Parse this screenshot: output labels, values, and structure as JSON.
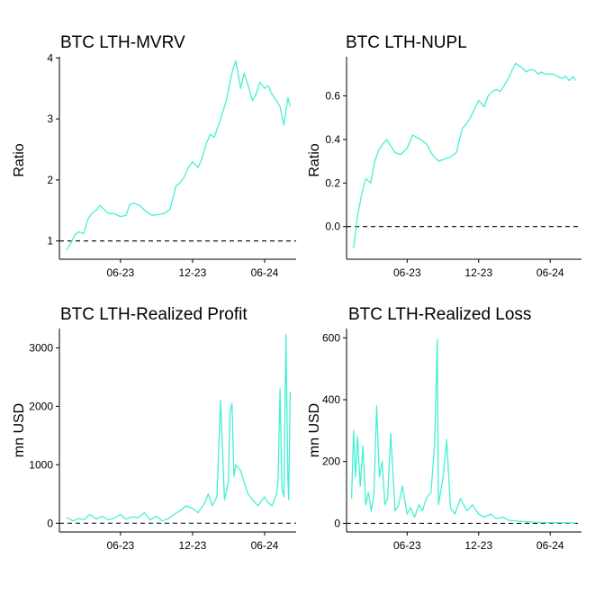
{
  "colors": {
    "series": "#45f0d4",
    "axis": "#000000"
  },
  "chart_data": [
    {
      "id": "mvrv",
      "type": "line",
      "title": "BTC LTH-MVRV",
      "xlabel": "",
      "ylabel": "Ratio",
      "xlim": [
        "2022-12-28",
        "2024-08-20"
      ],
      "ylim": [
        0.7,
        4.02
      ],
      "yticks": [
        1,
        2,
        3,
        4
      ],
      "yticklabels": [
        "1",
        "2",
        "3",
        "4"
      ],
      "xticks": [
        "2023-06-01",
        "2023-12-01",
        "2024-06-01"
      ],
      "xticklabels": [
        "06-23",
        "12-23",
        "06-24"
      ],
      "reference_line": 1,
      "grid": false,
      "series": [
        {
          "x": [
            "2023-01-15",
            "2023-01-25",
            "2023-02-05",
            "2023-02-15",
            "2023-02-28",
            "2023-03-10",
            "2023-03-20",
            "2023-03-31",
            "2023-04-10",
            "2023-04-20",
            "2023-05-01",
            "2023-05-15",
            "2023-06-01",
            "2023-06-15",
            "2023-06-25",
            "2023-07-05",
            "2023-07-20",
            "2023-08-05",
            "2023-08-20",
            "2023-09-05",
            "2023-09-20",
            "2023-10-05",
            "2023-10-20",
            "2023-10-30",
            "2023-11-10",
            "2023-11-20",
            "2023-12-01",
            "2023-12-15",
            "2023-12-25",
            "2024-01-05",
            "2024-01-15",
            "2024-01-25",
            "2024-02-05",
            "2024-02-15",
            "2024-02-25",
            "2024-03-05",
            "2024-03-12",
            "2024-03-20",
            "2024-04-01",
            "2024-04-10",
            "2024-04-20",
            "2024-05-01",
            "2024-05-10",
            "2024-05-20",
            "2024-06-01",
            "2024-06-10",
            "2024-06-20",
            "2024-07-01",
            "2024-07-10",
            "2024-07-20",
            "2024-07-30",
            "2024-08-05"
          ],
          "y": [
            0.85,
            0.95,
            1.1,
            1.15,
            1.12,
            1.35,
            1.45,
            1.5,
            1.58,
            1.52,
            1.45,
            1.45,
            1.4,
            1.42,
            1.6,
            1.62,
            1.58,
            1.48,
            1.42,
            1.43,
            1.45,
            1.52,
            1.9,
            1.95,
            2.05,
            2.2,
            2.3,
            2.2,
            2.35,
            2.6,
            2.75,
            2.7,
            2.9,
            3.1,
            3.3,
            3.6,
            3.8,
            3.95,
            3.5,
            3.75,
            3.55,
            3.3,
            3.4,
            3.6,
            3.5,
            3.55,
            3.4,
            3.3,
            3.2,
            2.9,
            3.35,
            3.2
          ]
        }
      ]
    },
    {
      "id": "nupl",
      "type": "line",
      "title": "BTC LTH-NUPL",
      "xlabel": "",
      "ylabel": "Ratio",
      "xlim": [
        "2022-12-28",
        "2024-08-20"
      ],
      "ylim": [
        -0.15,
        0.78
      ],
      "yticks": [
        0.0,
        0.2,
        0.4,
        0.6
      ],
      "yticklabels": [
        "0.0",
        "0.2",
        "0.4",
        "0.6"
      ],
      "xticks": [
        "2023-06-01",
        "2023-12-01",
        "2024-06-01"
      ],
      "xticklabels": [
        "06-23",
        "12-23",
        "06-24"
      ],
      "reference_line": 0,
      "grid": false,
      "series": [
        {
          "x": [
            "2023-01-15",
            "2023-01-25",
            "2023-02-05",
            "2023-02-15",
            "2023-02-28",
            "2023-03-10",
            "2023-03-20",
            "2023-03-31",
            "2023-04-10",
            "2023-04-20",
            "2023-05-01",
            "2023-05-15",
            "2023-06-01",
            "2023-06-15",
            "2023-06-25",
            "2023-07-05",
            "2023-07-20",
            "2023-08-05",
            "2023-08-20",
            "2023-09-05",
            "2023-09-20",
            "2023-10-05",
            "2023-10-20",
            "2023-10-30",
            "2023-11-10",
            "2023-11-20",
            "2023-12-01",
            "2023-12-15",
            "2023-12-25",
            "2024-01-05",
            "2024-01-15",
            "2024-01-25",
            "2024-02-05",
            "2024-02-15",
            "2024-02-25",
            "2024-03-05",
            "2024-03-12",
            "2024-03-20",
            "2024-04-01",
            "2024-04-10",
            "2024-04-20",
            "2024-05-01",
            "2024-05-10",
            "2024-05-20",
            "2024-06-01",
            "2024-06-10",
            "2024-06-20",
            "2024-07-01",
            "2024-07-10",
            "2024-07-20",
            "2024-07-30",
            "2024-08-05"
          ],
          "y": [
            -0.1,
            0.05,
            0.15,
            0.22,
            0.2,
            0.3,
            0.35,
            0.38,
            0.4,
            0.37,
            0.34,
            0.33,
            0.36,
            0.42,
            0.41,
            0.4,
            0.38,
            0.33,
            0.3,
            0.31,
            0.32,
            0.34,
            0.45,
            0.47,
            0.5,
            0.54,
            0.58,
            0.55,
            0.6,
            0.62,
            0.63,
            0.62,
            0.65,
            0.68,
            0.72,
            0.75,
            0.74,
            0.73,
            0.71,
            0.72,
            0.72,
            0.7,
            0.71,
            0.7,
            0.7,
            0.7,
            0.69,
            0.68,
            0.69,
            0.67,
            0.69,
            0.67
          ]
        }
      ]
    },
    {
      "id": "profit",
      "type": "line",
      "title": "BTC LTH-Realized Profit",
      "xlabel": "",
      "ylabel": "mn USD",
      "xlim": [
        "2022-12-28",
        "2024-08-20"
      ],
      "ylim": [
        -150,
        3330
      ],
      "yticks": [
        0,
        1000,
        2000,
        3000
      ],
      "yticklabels": [
        "0",
        "1000",
        "2000",
        "3000"
      ],
      "xticks": [
        "2023-06-01",
        "2023-12-01",
        "2024-06-01"
      ],
      "xticklabels": [
        "06-23",
        "12-23",
        "06-24"
      ],
      "reference_line": 0,
      "grid": false,
      "series": [
        {
          "x": [
            "2023-01-15",
            "2023-02-01",
            "2023-02-15",
            "2023-03-01",
            "2023-03-15",
            "2023-04-01",
            "2023-04-15",
            "2023-05-01",
            "2023-05-15",
            "2023-06-01",
            "2023-06-15",
            "2023-07-01",
            "2023-07-15",
            "2023-08-01",
            "2023-08-15",
            "2023-09-01",
            "2023-09-15",
            "2023-10-01",
            "2023-10-15",
            "2023-11-01",
            "2023-11-15",
            "2023-12-01",
            "2023-12-15",
            "2024-01-01",
            "2024-01-10",
            "2024-01-20",
            "2024-02-01",
            "2024-02-10",
            "2024-02-20",
            "2024-03-01",
            "2024-03-05",
            "2024-03-10",
            "2024-03-15",
            "2024-03-20",
            "2024-04-01",
            "2024-04-10",
            "2024-04-20",
            "2024-05-01",
            "2024-05-15",
            "2024-06-01",
            "2024-06-10",
            "2024-06-20",
            "2024-07-01",
            "2024-07-05",
            "2024-07-10",
            "2024-07-15",
            "2024-07-20",
            "2024-07-25",
            "2024-07-30",
            "2024-08-01",
            "2024-08-05"
          ],
          "y": [
            100,
            40,
            80,
            60,
            150,
            70,
            120,
            60,
            80,
            150,
            70,
            110,
            90,
            180,
            60,
            120,
            40,
            80,
            150,
            220,
            300,
            250,
            180,
            350,
            500,
            300,
            450,
            2100,
            400,
            700,
            1900,
            2050,
            800,
            1000,
            900,
            700,
            500,
            400,
            300,
            450,
            350,
            300,
            500,
            700,
            2300,
            600,
            450,
            3230,
            800,
            400,
            2250
          ]
        }
      ]
    },
    {
      "id": "loss",
      "type": "line",
      "title": "BTC LTH-Realized Loss",
      "xlabel": "",
      "ylabel": "mn USD",
      "xlim": [
        "2022-12-28",
        "2024-08-20"
      ],
      "ylim": [
        -28,
        630
      ],
      "yticks": [
        0,
        200,
        400,
        600
      ],
      "yticklabels": [
        "0",
        "200",
        "400",
        "600"
      ],
      "xticks": [
        "2023-06-01",
        "2023-12-01",
        "2024-06-01"
      ],
      "xticklabels": [
        "06-23",
        "12-23",
        "06-24"
      ],
      "reference_line": 0,
      "grid": false,
      "series": [
        {
          "x": [
            "2023-01-10",
            "2023-01-15",
            "2023-01-20",
            "2023-01-25",
            "2023-02-01",
            "2023-02-08",
            "2023-02-15",
            "2023-02-22",
            "2023-03-01",
            "2023-03-08",
            "2023-03-15",
            "2023-03-22",
            "2023-03-29",
            "2023-04-05",
            "2023-04-12",
            "2023-04-20",
            "2023-05-01",
            "2023-05-10",
            "2023-05-20",
            "2023-06-01",
            "2023-06-10",
            "2023-06-20",
            "2023-07-01",
            "2023-07-10",
            "2023-07-20",
            "2023-08-01",
            "2023-08-10",
            "2023-08-17",
            "2023-08-20",
            "2023-09-01",
            "2023-09-10",
            "2023-09-20",
            "2023-10-01",
            "2023-10-15",
            "2023-11-01",
            "2023-11-15",
            "2023-12-01",
            "2023-12-15",
            "2024-01-01",
            "2024-01-15",
            "2024-02-01",
            "2024-02-15",
            "2024-03-01",
            "2024-04-01",
            "2024-05-01",
            "2024-06-01",
            "2024-07-01",
            "2024-08-05"
          ],
          "y": [
            80,
            300,
            150,
            280,
            120,
            250,
            60,
            100,
            40,
            90,
            380,
            150,
            200,
            60,
            80,
            290,
            40,
            60,
            120,
            30,
            50,
            20,
            60,
            40,
            80,
            100,
            250,
            595,
            60,
            150,
            270,
            50,
            30,
            80,
            40,
            60,
            30,
            20,
            30,
            15,
            20,
            10,
            8,
            5,
            3,
            2,
            2,
            1
          ]
        }
      ]
    }
  ]
}
